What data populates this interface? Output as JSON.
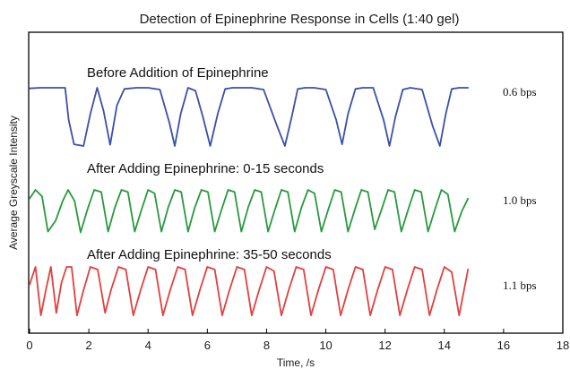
{
  "chart_data": {
    "type": "line",
    "title": "Detection of Epinephrine Response in Cells (1:40 gel)",
    "xlabel": "Time, /s",
    "ylabel": "Average Greyscale Intensity",
    "xlim": [
      0,
      18
    ],
    "xticks": [
      0,
      2,
      4,
      6,
      8,
      10,
      12,
      14,
      16,
      18
    ],
    "y_ticks_shown": false,
    "grid": false,
    "series": [
      {
        "name": "Before Addition of Epinephrine",
        "rate_label": "0.6 bps",
        "color": "#3b4fa8",
        "x": [
          0.0,
          0.35,
          0.8,
          1.2,
          1.32,
          1.5,
          1.82,
          2.05,
          2.28,
          2.5,
          2.72,
          2.95,
          3.2,
          3.6,
          4.0,
          4.4,
          4.72,
          4.9,
          5.1,
          5.35,
          5.6,
          5.85,
          6.1,
          6.35,
          6.6,
          6.85,
          7.1,
          7.5,
          7.9,
          8.35,
          8.62,
          8.85,
          9.05,
          9.3,
          9.6,
          10.0,
          10.35,
          10.55,
          10.75,
          11.0,
          11.25,
          11.6,
          11.95,
          12.15,
          12.35,
          12.6,
          12.85,
          13.25,
          13.6,
          13.85,
          14.05,
          14.25,
          14.5,
          14.8
        ],
        "y": [
          0.99,
          1.0,
          1.0,
          1.0,
          0.45,
          0.03,
          0.0,
          0.55,
          1.0,
          0.6,
          0.02,
          0.7,
          0.98,
          1.0,
          1.0,
          0.97,
          0.4,
          0.0,
          0.55,
          1.0,
          0.95,
          0.5,
          0.0,
          0.55,
          0.98,
          1.0,
          1.0,
          1.0,
          0.97,
          0.35,
          0.0,
          0.5,
          0.98,
          1.0,
          1.0,
          0.97,
          0.45,
          0.03,
          0.55,
          0.98,
          1.0,
          1.0,
          0.45,
          0.0,
          0.5,
          0.97,
          1.0,
          0.97,
          0.35,
          0.0,
          0.55,
          0.98,
          1.0,
          1.0
        ]
      },
      {
        "name": "After Adding Epinephrine: 0-15 seconds",
        "rate_label": "1.0 bps",
        "color": "#279a3d",
        "x": [
          0.0,
          0.2,
          0.42,
          0.62,
          0.88,
          1.12,
          1.3,
          1.52,
          1.72,
          1.95,
          2.18,
          2.42,
          2.65,
          2.88,
          3.1,
          3.32,
          3.55,
          3.78,
          4.0,
          4.22,
          4.45,
          4.68,
          4.9,
          5.12,
          5.35,
          5.58,
          5.8,
          6.02,
          6.25,
          6.48,
          6.7,
          6.92,
          7.15,
          7.38,
          7.6,
          7.82,
          8.05,
          8.28,
          8.5,
          8.72,
          8.95,
          9.18,
          9.4,
          9.62,
          9.85,
          10.08,
          10.3,
          10.52,
          10.75,
          10.98,
          11.2,
          11.42,
          11.65,
          11.88,
          12.1,
          12.32,
          12.55,
          12.78,
          13.0,
          13.22,
          13.45,
          13.68,
          13.9,
          14.12,
          14.35,
          14.58,
          14.8
        ],
        "y": [
          0.8,
          1.0,
          0.85,
          0.05,
          0.3,
          0.75,
          1.0,
          0.75,
          0.03,
          0.55,
          1.0,
          0.95,
          0.05,
          0.6,
          1.0,
          0.95,
          0.05,
          0.55,
          1.0,
          0.92,
          0.05,
          0.6,
          1.0,
          0.95,
          0.05,
          0.6,
          1.0,
          0.95,
          0.05,
          0.55,
          1.0,
          0.95,
          0.05,
          0.6,
          1.0,
          0.95,
          0.05,
          0.55,
          1.0,
          0.95,
          0.05,
          0.6,
          1.0,
          0.92,
          0.05,
          0.55,
          1.0,
          0.95,
          0.05,
          0.55,
          1.0,
          0.95,
          0.1,
          0.55,
          1.0,
          0.95,
          0.05,
          0.55,
          1.0,
          0.95,
          0.05,
          0.55,
          1.0,
          0.9,
          0.05,
          0.5,
          0.8
        ]
      },
      {
        "name": "After Adding Epinephrine: 35-50 seconds",
        "rate_label": "1.1 bps",
        "color": "#e0403f",
        "x": [
          0.0,
          0.2,
          0.38,
          0.55,
          0.72,
          0.9,
          1.08,
          1.25,
          1.42,
          1.6,
          1.8,
          2.05,
          2.3,
          2.55,
          2.75,
          3.0,
          3.25,
          3.5,
          3.75,
          4.0,
          4.25,
          4.5,
          4.75,
          5.0,
          5.25,
          5.5,
          5.75,
          6.0,
          6.25,
          6.5,
          6.75,
          7.0,
          7.25,
          7.5,
          7.75,
          8.0,
          8.25,
          8.5,
          8.75,
          9.0,
          9.25,
          9.5,
          9.75,
          10.0,
          10.25,
          10.5,
          10.75,
          11.0,
          11.25,
          11.5,
          11.75,
          12.0,
          12.25,
          12.5,
          12.75,
          13.0,
          13.25,
          13.5,
          13.75,
          14.0,
          14.25,
          14.5,
          14.8
        ],
        "y": [
          0.65,
          1.0,
          0.05,
          0.55,
          1.0,
          0.1,
          0.7,
          1.0,
          1.0,
          0.05,
          0.5,
          1.0,
          0.95,
          0.1,
          0.55,
          1.0,
          0.95,
          0.05,
          0.55,
          1.0,
          0.95,
          0.05,
          0.55,
          1.0,
          0.95,
          0.05,
          0.55,
          1.0,
          0.95,
          0.05,
          0.55,
          1.0,
          0.95,
          0.05,
          0.55,
          1.0,
          0.92,
          0.05,
          0.55,
          1.0,
          0.95,
          0.05,
          0.55,
          1.0,
          0.95,
          0.05,
          0.55,
          1.0,
          0.95,
          0.05,
          0.55,
          1.0,
          0.95,
          0.05,
          0.55,
          1.0,
          0.95,
          0.05,
          0.55,
          1.0,
          0.9,
          0.05,
          0.95
        ]
      }
    ]
  }
}
